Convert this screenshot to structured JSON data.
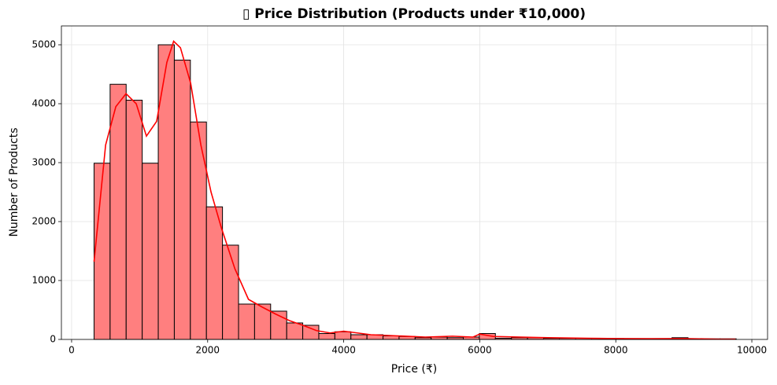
{
  "chart_data": {
    "type": "histogram",
    "title": "▯ Price Distribution (Products under ₹10,000)",
    "xlabel": "Price (₹)",
    "ylabel": "Number of Products",
    "bins": [
      330,
      566,
      802,
      1038,
      1274,
      1510,
      1746,
      1982,
      2218,
      2454,
      2690,
      2926,
      3162,
      3398,
      3634,
      3870,
      4106,
      4342,
      4578,
      4814,
      5050,
      5286,
      5522,
      5758,
      5994,
      6230,
      6466,
      6702,
      6938,
      7174,
      7410,
      7646,
      7882,
      8118,
      8354,
      8590,
      8826,
      9062,
      9298,
      9534,
      9770
    ],
    "values": [
      2990,
      4330,
      4060,
      2990,
      5000,
      4740,
      3690,
      2250,
      1600,
      600,
      600,
      480,
      280,
      240,
      100,
      130,
      80,
      80,
      60,
      50,
      30,
      40,
      30,
      40,
      100,
      20,
      30,
      30,
      20,
      20,
      20,
      20,
      15,
      10,
      10,
      10,
      30,
      10,
      10,
      10
    ],
    "color": "#ff7f7f",
    "edgecolor": "#000000",
    "kde": {
      "color": "#ff0000",
      "x": [
        330,
        500,
        650,
        800,
        950,
        1100,
        1250,
        1400,
        1500,
        1600,
        1750,
        1900,
        2050,
        2200,
        2400,
        2600,
        2800,
        3000,
        3200,
        3400,
        3600,
        3800,
        4000,
        4200,
        4400,
        4800,
        5200,
        5600,
        5900,
        6000,
        6200,
        6600,
        7000,
        7600,
        8000,
        8500,
        9000,
        9500,
        9760
      ],
      "values": [
        1320,
        3300,
        3950,
        4170,
        4000,
        3450,
        3700,
        4700,
        5060,
        4950,
        4350,
        3300,
        2500,
        1900,
        1200,
        680,
        550,
        430,
        320,
        240,
        150,
        110,
        140,
        110,
        80,
        60,
        40,
        55,
        40,
        90,
        50,
        40,
        30,
        20,
        15,
        12,
        15,
        5,
        5
      ]
    },
    "xlim": [
      -150,
      10231
    ],
    "ylim": [
      0,
      5320
    ],
    "xticks": [
      0,
      2000,
      4000,
      6000,
      8000,
      10000
    ],
    "yticks": [
      0,
      1000,
      2000,
      3000,
      4000,
      5000
    ],
    "grid": true
  }
}
